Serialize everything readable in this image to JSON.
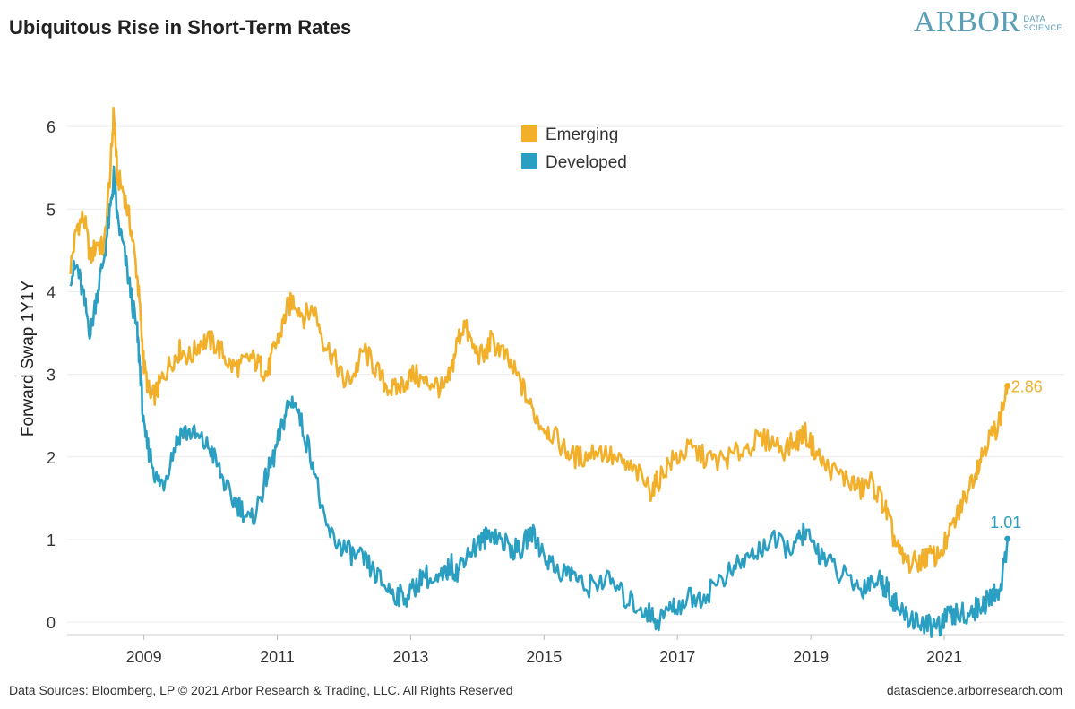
{
  "header": {
    "title": "Ubiquitous Rise in Short-Term Rates",
    "logo_main": "ARBOR",
    "logo_sub_1": "DATA",
    "logo_sub_2": "SCIENCE"
  },
  "footer": {
    "left": "Data Sources: Bloomberg, LP © 2021 Arbor Research & Trading, LLC. All Rights Reserved",
    "right": "datascience.arborresearch.com"
  },
  "colors": {
    "emerging": "#F2B02A",
    "developed": "#2A9FC2",
    "grid": "#ececec",
    "text": "#333333"
  },
  "chart_data": {
    "type": "line",
    "title": "Ubiquitous Rise in Short-Term Rates",
    "xlabel": "",
    "ylabel": "Forward Swap 1Y1Y",
    "xlim": [
      2007.85,
      2022.8
    ],
    "ylim": [
      -0.15,
      6.5
    ],
    "y_ticks": [
      0,
      1,
      2,
      3,
      4,
      5,
      6
    ],
    "x_ticks": [
      2009,
      2011,
      2013,
      2015,
      2017,
      2019,
      2021
    ],
    "grid": "horizontal",
    "legend": "top-center",
    "series": [
      {
        "name": "Emerging",
        "color": "#F2B02A",
        "end_label": "2.86",
        "x": [
          2007.9,
          2008.0,
          2008.1,
          2008.2,
          2008.3,
          2008.4,
          2008.5,
          2008.55,
          2008.6,
          2008.7,
          2008.8,
          2008.9,
          2008.95,
          2009.0,
          2009.1,
          2009.2,
          2009.3,
          2009.45,
          2009.55,
          2009.7,
          2009.85,
          2010.0,
          2010.15,
          2010.3,
          2010.45,
          2010.6,
          2010.75,
          2010.85,
          2010.95,
          2011.05,
          2011.15,
          2011.25,
          2011.4,
          2011.55,
          2011.7,
          2011.85,
          2012.0,
          2012.15,
          2012.3,
          2012.45,
          2012.6,
          2012.75,
          2012.9,
          2013.05,
          2013.2,
          2013.35,
          2013.5,
          2013.6,
          2013.7,
          2013.8,
          2013.95,
          2014.1,
          2014.2,
          2014.35,
          2014.5,
          2014.65,
          2014.8,
          2014.95,
          2015.1,
          2015.3,
          2015.45,
          2015.6,
          2015.8,
          2016.0,
          2016.2,
          2016.4,
          2016.6,
          2016.7,
          2016.85,
          2017.0,
          2017.2,
          2017.4,
          2017.6,
          2017.8,
          2018.0,
          2018.2,
          2018.4,
          2018.6,
          2018.8,
          2018.9,
          2019.05,
          2019.2,
          2019.4,
          2019.6,
          2019.75,
          2019.9,
          2020.05,
          2020.15,
          2020.25,
          2020.35,
          2020.5,
          2020.65,
          2020.75,
          2020.9,
          2021.05,
          2021.2,
          2021.3,
          2021.45,
          2021.55,
          2021.65,
          2021.75,
          2021.85,
          2021.95
        ],
        "values": [
          4.3,
          4.8,
          4.9,
          4.4,
          4.6,
          4.5,
          5.5,
          6.2,
          5.4,
          5.2,
          4.8,
          4.2,
          3.7,
          3.1,
          2.7,
          2.8,
          3.0,
          3.2,
          3.3,
          3.2,
          3.4,
          3.4,
          3.3,
          3.1,
          3.1,
          3.2,
          3.1,
          3.0,
          3.3,
          3.5,
          3.8,
          3.9,
          3.7,
          3.8,
          3.4,
          3.2,
          2.9,
          3.0,
          3.3,
          3.1,
          2.9,
          2.8,
          2.9,
          3.0,
          2.9,
          2.9,
          2.8,
          3.0,
          3.4,
          3.6,
          3.3,
          3.2,
          3.4,
          3.3,
          3.1,
          2.9,
          2.6,
          2.4,
          2.3,
          2.1,
          2.0,
          2.0,
          2.1,
          2.0,
          1.9,
          1.8,
          1.6,
          1.7,
          1.9,
          2.0,
          2.1,
          2.0,
          1.95,
          2.0,
          2.1,
          2.2,
          2.2,
          2.1,
          2.2,
          2.3,
          2.1,
          1.9,
          1.8,
          1.7,
          1.6,
          1.7,
          1.5,
          1.3,
          1.0,
          0.8,
          0.7,
          0.75,
          0.8,
          0.8,
          1.0,
          1.3,
          1.5,
          1.8,
          2.0,
          2.2,
          2.3,
          2.5,
          2.86
        ]
      },
      {
        "name": "Developed",
        "color": "#2A9FC2",
        "end_label": "1.01",
        "x": [
          2007.9,
          2008.0,
          2008.1,
          2008.2,
          2008.3,
          2008.4,
          2008.5,
          2008.55,
          2008.6,
          2008.7,
          2008.8,
          2008.9,
          2008.95,
          2009.0,
          2009.1,
          2009.2,
          2009.3,
          2009.45,
          2009.55,
          2009.7,
          2009.85,
          2010.0,
          2010.15,
          2010.3,
          2010.45,
          2010.6,
          2010.75,
          2010.85,
          2010.95,
          2011.05,
          2011.15,
          2011.25,
          2011.4,
          2011.55,
          2011.7,
          2011.85,
          2012.0,
          2012.15,
          2012.3,
          2012.45,
          2012.6,
          2012.75,
          2012.9,
          2013.05,
          2013.2,
          2013.35,
          2013.5,
          2013.6,
          2013.7,
          2013.8,
          2013.95,
          2014.1,
          2014.2,
          2014.35,
          2014.5,
          2014.65,
          2014.8,
          2014.95,
          2015.1,
          2015.3,
          2015.45,
          2015.6,
          2015.8,
          2016.0,
          2016.2,
          2016.4,
          2016.6,
          2016.7,
          2016.85,
          2017.0,
          2017.2,
          2017.4,
          2017.6,
          2017.8,
          2018.0,
          2018.2,
          2018.4,
          2018.6,
          2018.8,
          2018.9,
          2019.05,
          2019.2,
          2019.4,
          2019.6,
          2019.75,
          2019.9,
          2020.05,
          2020.15,
          2020.25,
          2020.35,
          2020.5,
          2020.65,
          2020.75,
          2020.9,
          2021.05,
          2021.2,
          2021.3,
          2021.45,
          2021.55,
          2021.65,
          2021.75,
          2021.85,
          2021.95
        ],
        "values": [
          4.2,
          4.3,
          3.9,
          3.5,
          4.0,
          4.4,
          5.0,
          5.4,
          4.9,
          4.5,
          4.0,
          3.5,
          3.0,
          2.3,
          2.0,
          1.7,
          1.7,
          2.1,
          2.3,
          2.3,
          2.2,
          2.1,
          1.8,
          1.5,
          1.4,
          1.2,
          1.5,
          1.8,
          2.0,
          2.3,
          2.6,
          2.7,
          2.3,
          1.9,
          1.2,
          1.0,
          0.9,
          0.8,
          0.75,
          0.6,
          0.45,
          0.35,
          0.3,
          0.4,
          0.6,
          0.45,
          0.55,
          0.7,
          0.6,
          0.8,
          0.9,
          1.0,
          1.1,
          1.0,
          0.9,
          0.85,
          1.1,
          0.9,
          0.7,
          0.6,
          0.6,
          0.4,
          0.5,
          0.5,
          0.3,
          0.2,
          0.1,
          0.0,
          0.15,
          0.2,
          0.3,
          0.3,
          0.5,
          0.6,
          0.75,
          0.85,
          1.0,
          0.9,
          0.95,
          1.1,
          0.9,
          0.8,
          0.6,
          0.5,
          0.4,
          0.5,
          0.5,
          0.4,
          0.25,
          0.1,
          0.05,
          0.0,
          -0.05,
          -0.05,
          0.05,
          0.1,
          0.1,
          0.15,
          0.2,
          0.25,
          0.35,
          0.4,
          1.01
        ]
      }
    ]
  }
}
